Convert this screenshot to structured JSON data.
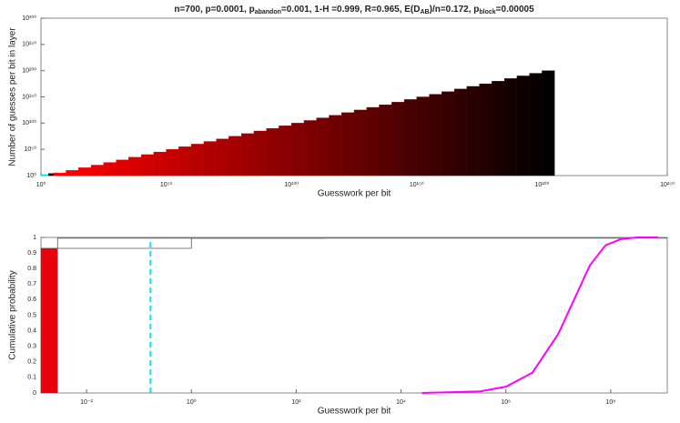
{
  "chart_data": [
    {
      "type": "histogram",
      "title": [
        "n=700, p=0.0001, p",
        "abandon",
        "=0.001, 1-H =0.999, R=0.965, E(D",
        "AB",
        ")/n=0.172, p",
        "block",
        "=0.00005"
      ],
      "xlabel": "Guesswork per bit",
      "ylabel": "Number of guesses per bit in layer",
      "xlog": true,
      "ylog": true,
      "xlim": [
        1,
        1e+250
      ],
      "ylim": [
        1,
        1e+300
      ],
      "xticks": [
        {
          "value": 1,
          "label": "10⁰"
        },
        {
          "value": 1e+50,
          "label": "10⁵⁰"
        },
        {
          "value": 1e+100,
          "label": "10¹⁰⁰"
        },
        {
          "value": 1e+150,
          "label": "10¹⁵⁰"
        },
        {
          "value": 1e+200,
          "label": "10²⁰⁰"
        },
        {
          "value": 1e+250,
          "label": "10²⁵⁰"
        }
      ],
      "yticks": [
        {
          "value": 1,
          "label": "10⁰"
        },
        {
          "value": 1e+50,
          "label": "10⁵⁰"
        },
        {
          "value": 1e+100,
          "label": "10¹⁰⁰"
        },
        {
          "value": 1e+150,
          "label": "10¹⁵⁰"
        },
        {
          "value": 1e+200,
          "label": "10²⁰⁰"
        },
        {
          "value": 1e+250,
          "label": "10²⁵⁰"
        },
        {
          "value": 1e+300,
          "label": "10³⁰⁰"
        }
      ],
      "bins": [
        1,
        1000.0,
        100000.0,
        10000000000.0,
        1000000000000000.0,
        1e+20,
        1e+25,
        1e+30,
        1e+35,
        1e+40,
        1e+45,
        1e+50,
        1e+55,
        1e+60,
        1e+65,
        1e+70,
        1e+75,
        1e+80,
        1e+85,
        1e+90,
        1e+95,
        1e+100,
        1e+105,
        1e+110,
        1e+115,
        1e+120,
        1e+125,
        1e+130,
        1e+135,
        1e+140,
        1e+145,
        1e+150,
        1e+155,
        1e+160,
        1e+165,
        1e+170,
        1e+175,
        1e+180,
        1e+185,
        1e+190,
        1e+195,
        1e+200,
        1e+205
      ],
      "values": [
        100.0,
        10000.0,
        100000.0,
        10000000000.0,
        1000000000000000.0,
        1e+20,
        1e+25,
        1e+30,
        1e+35,
        1e+40,
        1e+45,
        1e+50,
        1e+55,
        1e+60,
        1e+65,
        1e+70,
        1e+75,
        1e+80,
        1e+85,
        1e+90,
        1e+95,
        1e+100,
        1e+105,
        1e+110,
        1e+115,
        1e+120,
        1e+125,
        1e+130,
        1e+135,
        1e+140,
        1e+145,
        1e+150,
        1e+155,
        1e+160,
        1e+165,
        1e+170,
        1e+175,
        1e+180,
        1e+185,
        1e+190,
        1e+195,
        1e+200
      ],
      "colors": [
        "#00e5ee",
        "#000000",
        "#ff0000",
        "#f80000",
        "#f20000",
        "#eb0000",
        "#e50000",
        "#de0000",
        "#d80000",
        "#d10000",
        "#cb0000",
        "#c40000",
        "#be0000",
        "#b70000",
        "#b10000",
        "#aa0000",
        "#a40000",
        "#9d0000",
        "#970000",
        "#900000",
        "#8a0000",
        "#830000",
        "#7d0000",
        "#760000",
        "#700000",
        "#690000",
        "#630000",
        "#5c0000",
        "#560000",
        "#4f0000",
        "#490000",
        "#420000",
        "#3c0000",
        "#350000",
        "#2f0000",
        "#280000",
        "#220000",
        "#1b0000",
        "#150000",
        "#0e0000",
        "#080000",
        "#000000"
      ]
    },
    {
      "type": "line",
      "xlabel": "Guesswork per bit",
      "ylabel": "Cumulative probability",
      "xlog": true,
      "ylog": false,
      "xlim": [
        0.00135,
        1200000000.0
      ],
      "ylim": [
        0,
        1
      ],
      "xticks": [
        {
          "value": 0.01,
          "label": "10⁻²"
        },
        {
          "value": 1,
          "label": "10⁰"
        },
        {
          "value": 100,
          "label": "10²"
        },
        {
          "value": 10000,
          "label": "10⁴"
        },
        {
          "value": 1000000,
          "label": "10⁶"
        },
        {
          "value": 100000000,
          "label": "10⁸"
        }
      ],
      "yticks": [
        0,
        0.1,
        0.2,
        0.3,
        0.4,
        0.5,
        0.6,
        0.7,
        0.8,
        0.9,
        1
      ],
      "bars": {
        "bins": [
          0.00135,
          0.0028
        ],
        "values": [
          0.93
        ],
        "color": "#e8000b"
      },
      "series": [
        {
          "color": "#555555",
          "x": [
            0.00135,
            1,
            1,
            340
          ],
          "values": [
            0.93,
            0.93,
            0.995,
            0.995
          ]
        },
        {
          "color": "#555555",
          "x": [
            0.0028,
            0.0028,
            1200000000.0
          ],
          "values": [
            0.93,
            0.995,
            0.995
          ]
        },
        {
          "color": "#ff00ff",
          "x": [
            25000,
            320000,
            1000000,
            3200000,
            10000000,
            20000000,
            40000000,
            80000000,
            160000000,
            320000000,
            800000000
          ],
          "values": [
            0,
            0.01,
            0.04,
            0.13,
            0.38,
            0.6,
            0.82,
            0.95,
            0.99,
            1,
            1
          ]
        }
      ],
      "vline": {
        "x": 0.166,
        "y": 0.97,
        "color": "#00e5ee"
      }
    }
  ]
}
